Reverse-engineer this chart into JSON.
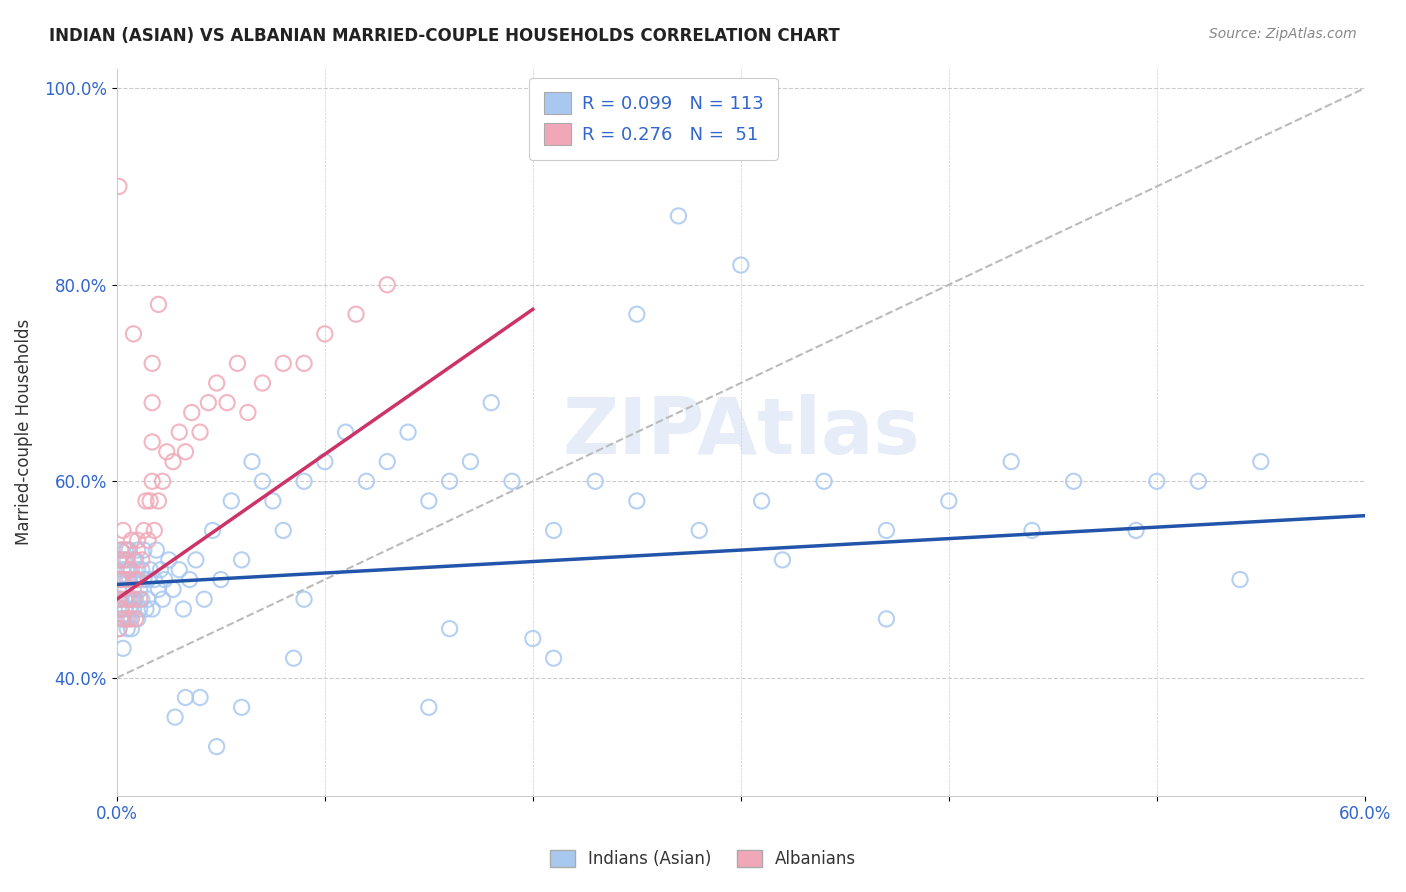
{
  "title": "INDIAN (ASIAN) VS ALBANIAN MARRIED-COUPLE HOUSEHOLDS CORRELATION CHART",
  "source_text": "Source: ZipAtlas.com",
  "ylabel": "Married-couple Households",
  "xlim": [
    0.0,
    0.6
  ],
  "ylim": [
    0.28,
    1.02
  ],
  "xticks": [
    0.0,
    0.1,
    0.2,
    0.3,
    0.4,
    0.5,
    0.6
  ],
  "xticklabels": [
    "0.0%",
    "",
    "",
    "",
    "",
    "",
    "60.0%"
  ],
  "yticks": [
    0.4,
    0.6,
    0.8,
    1.0
  ],
  "yticklabels": [
    "40.0%",
    "60.0%",
    "80.0%",
    "100.0%"
  ],
  "blue_R": 0.099,
  "blue_N": 113,
  "pink_R": 0.276,
  "pink_N": 51,
  "blue_color": "#A8C8F0",
  "pink_color": "#F0A8B8",
  "blue_line_color": "#2255AA",
  "pink_line_color": "#CC3366",
  "ref_line_color": "#BBBBBB",
  "watermark": "ZIPAtlas",
  "legend_label_blue": "Indians (Asian)",
  "legend_label_pink": "Albanians",
  "blue_scatter_x": [
    0.001,
    0.001,
    0.001,
    0.001,
    0.002,
    0.002,
    0.002,
    0.002,
    0.002,
    0.003,
    0.003,
    0.003,
    0.003,
    0.003,
    0.004,
    0.004,
    0.004,
    0.004,
    0.004,
    0.005,
    0.005,
    0.005,
    0.005,
    0.006,
    0.006,
    0.006,
    0.006,
    0.007,
    0.007,
    0.007,
    0.008,
    0.008,
    0.008,
    0.009,
    0.009,
    0.01,
    0.01,
    0.01,
    0.011,
    0.011,
    0.012,
    0.012,
    0.013,
    0.013,
    0.014,
    0.015,
    0.015,
    0.016,
    0.017,
    0.018,
    0.019,
    0.02,
    0.021,
    0.022,
    0.023,
    0.025,
    0.027,
    0.03,
    0.032,
    0.035,
    0.038,
    0.042,
    0.046,
    0.05,
    0.055,
    0.06,
    0.065,
    0.07,
    0.075,
    0.08,
    0.09,
    0.1,
    0.11,
    0.12,
    0.13,
    0.14,
    0.15,
    0.16,
    0.17,
    0.19,
    0.21,
    0.23,
    0.25,
    0.28,
    0.31,
    0.34,
    0.37,
    0.4,
    0.43,
    0.46,
    0.49,
    0.52,
    0.55,
    0.27,
    0.3,
    0.25,
    0.18,
    0.16,
    0.04,
    0.033,
    0.028,
    0.06,
    0.09,
    0.2,
    0.32,
    0.37,
    0.44,
    0.5,
    0.54,
    0.21,
    0.15,
    0.085,
    0.048
  ],
  "blue_scatter_y": [
    0.5,
    0.48,
    0.45,
    0.52,
    0.47,
    0.5,
    0.53,
    0.46,
    0.48,
    0.49,
    0.51,
    0.46,
    0.43,
    0.52,
    0.47,
    0.5,
    0.53,
    0.46,
    0.49,
    0.48,
    0.51,
    0.45,
    0.52,
    0.47,
    0.5,
    0.53,
    0.46,
    0.48,
    0.51,
    0.45,
    0.49,
    0.52,
    0.47,
    0.5,
    0.48,
    0.51,
    0.46,
    0.53,
    0.49,
    0.47,
    0.51,
    0.48,
    0.5,
    0.53,
    0.47,
    0.5,
    0.48,
    0.51,
    0.47,
    0.5,
    0.53,
    0.49,
    0.51,
    0.48,
    0.5,
    0.52,
    0.49,
    0.51,
    0.47,
    0.5,
    0.52,
    0.48,
    0.55,
    0.5,
    0.58,
    0.52,
    0.62,
    0.6,
    0.58,
    0.55,
    0.6,
    0.62,
    0.65,
    0.6,
    0.62,
    0.65,
    0.58,
    0.6,
    0.62,
    0.6,
    0.55,
    0.6,
    0.58,
    0.55,
    0.58,
    0.6,
    0.55,
    0.58,
    0.62,
    0.6,
    0.55,
    0.6,
    0.62,
    0.87,
    0.82,
    0.77,
    0.68,
    0.45,
    0.38,
    0.38,
    0.36,
    0.37,
    0.48,
    0.44,
    0.52,
    0.46,
    0.55,
    0.6,
    0.5,
    0.42,
    0.37,
    0.42,
    0.33
  ],
  "pink_scatter_x": [
    0.001,
    0.001,
    0.001,
    0.002,
    0.002,
    0.002,
    0.003,
    0.003,
    0.003,
    0.004,
    0.004,
    0.005,
    0.005,
    0.005,
    0.006,
    0.006,
    0.007,
    0.007,
    0.008,
    0.008,
    0.009,
    0.009,
    0.01,
    0.01,
    0.011,
    0.012,
    0.013,
    0.014,
    0.015,
    0.016,
    0.017,
    0.018,
    0.02,
    0.022,
    0.024,
    0.027,
    0.03,
    0.033,
    0.036,
    0.04,
    0.044,
    0.048,
    0.053,
    0.058,
    0.063,
    0.07,
    0.08,
    0.09,
    0.1,
    0.115,
    0.13
  ],
  "pink_scatter_y": [
    0.48,
    0.52,
    0.45,
    0.5,
    0.47,
    0.53,
    0.46,
    0.55,
    0.5,
    0.48,
    0.52,
    0.46,
    0.5,
    0.53,
    0.48,
    0.51,
    0.46,
    0.54,
    0.5,
    0.48,
    0.52,
    0.46,
    0.5,
    0.54,
    0.48,
    0.52,
    0.55,
    0.58,
    0.54,
    0.58,
    0.6,
    0.55,
    0.58,
    0.6,
    0.63,
    0.62,
    0.65,
    0.63,
    0.67,
    0.65,
    0.68,
    0.7,
    0.68,
    0.72,
    0.67,
    0.7,
    0.72,
    0.72,
    0.75,
    0.77,
    0.8
  ],
  "pink_outlier_x": [
    0.001,
    0.008,
    0.02,
    0.017,
    0.017,
    0.017
  ],
  "pink_outlier_y": [
    0.9,
    0.75,
    0.78,
    0.72,
    0.68,
    0.64
  ],
  "blue_line_x0": 0.0,
  "blue_line_x1": 0.6,
  "blue_line_y0": 0.495,
  "blue_line_y1": 0.565,
  "pink_line_x0": 0.0,
  "pink_line_x1": 0.2,
  "pink_line_y0": 0.48,
  "pink_line_y1": 0.775,
  "ref_line_x0": 0.0,
  "ref_line_x1": 0.6,
  "ref_line_y0": 0.4,
  "ref_line_y1": 1.0
}
